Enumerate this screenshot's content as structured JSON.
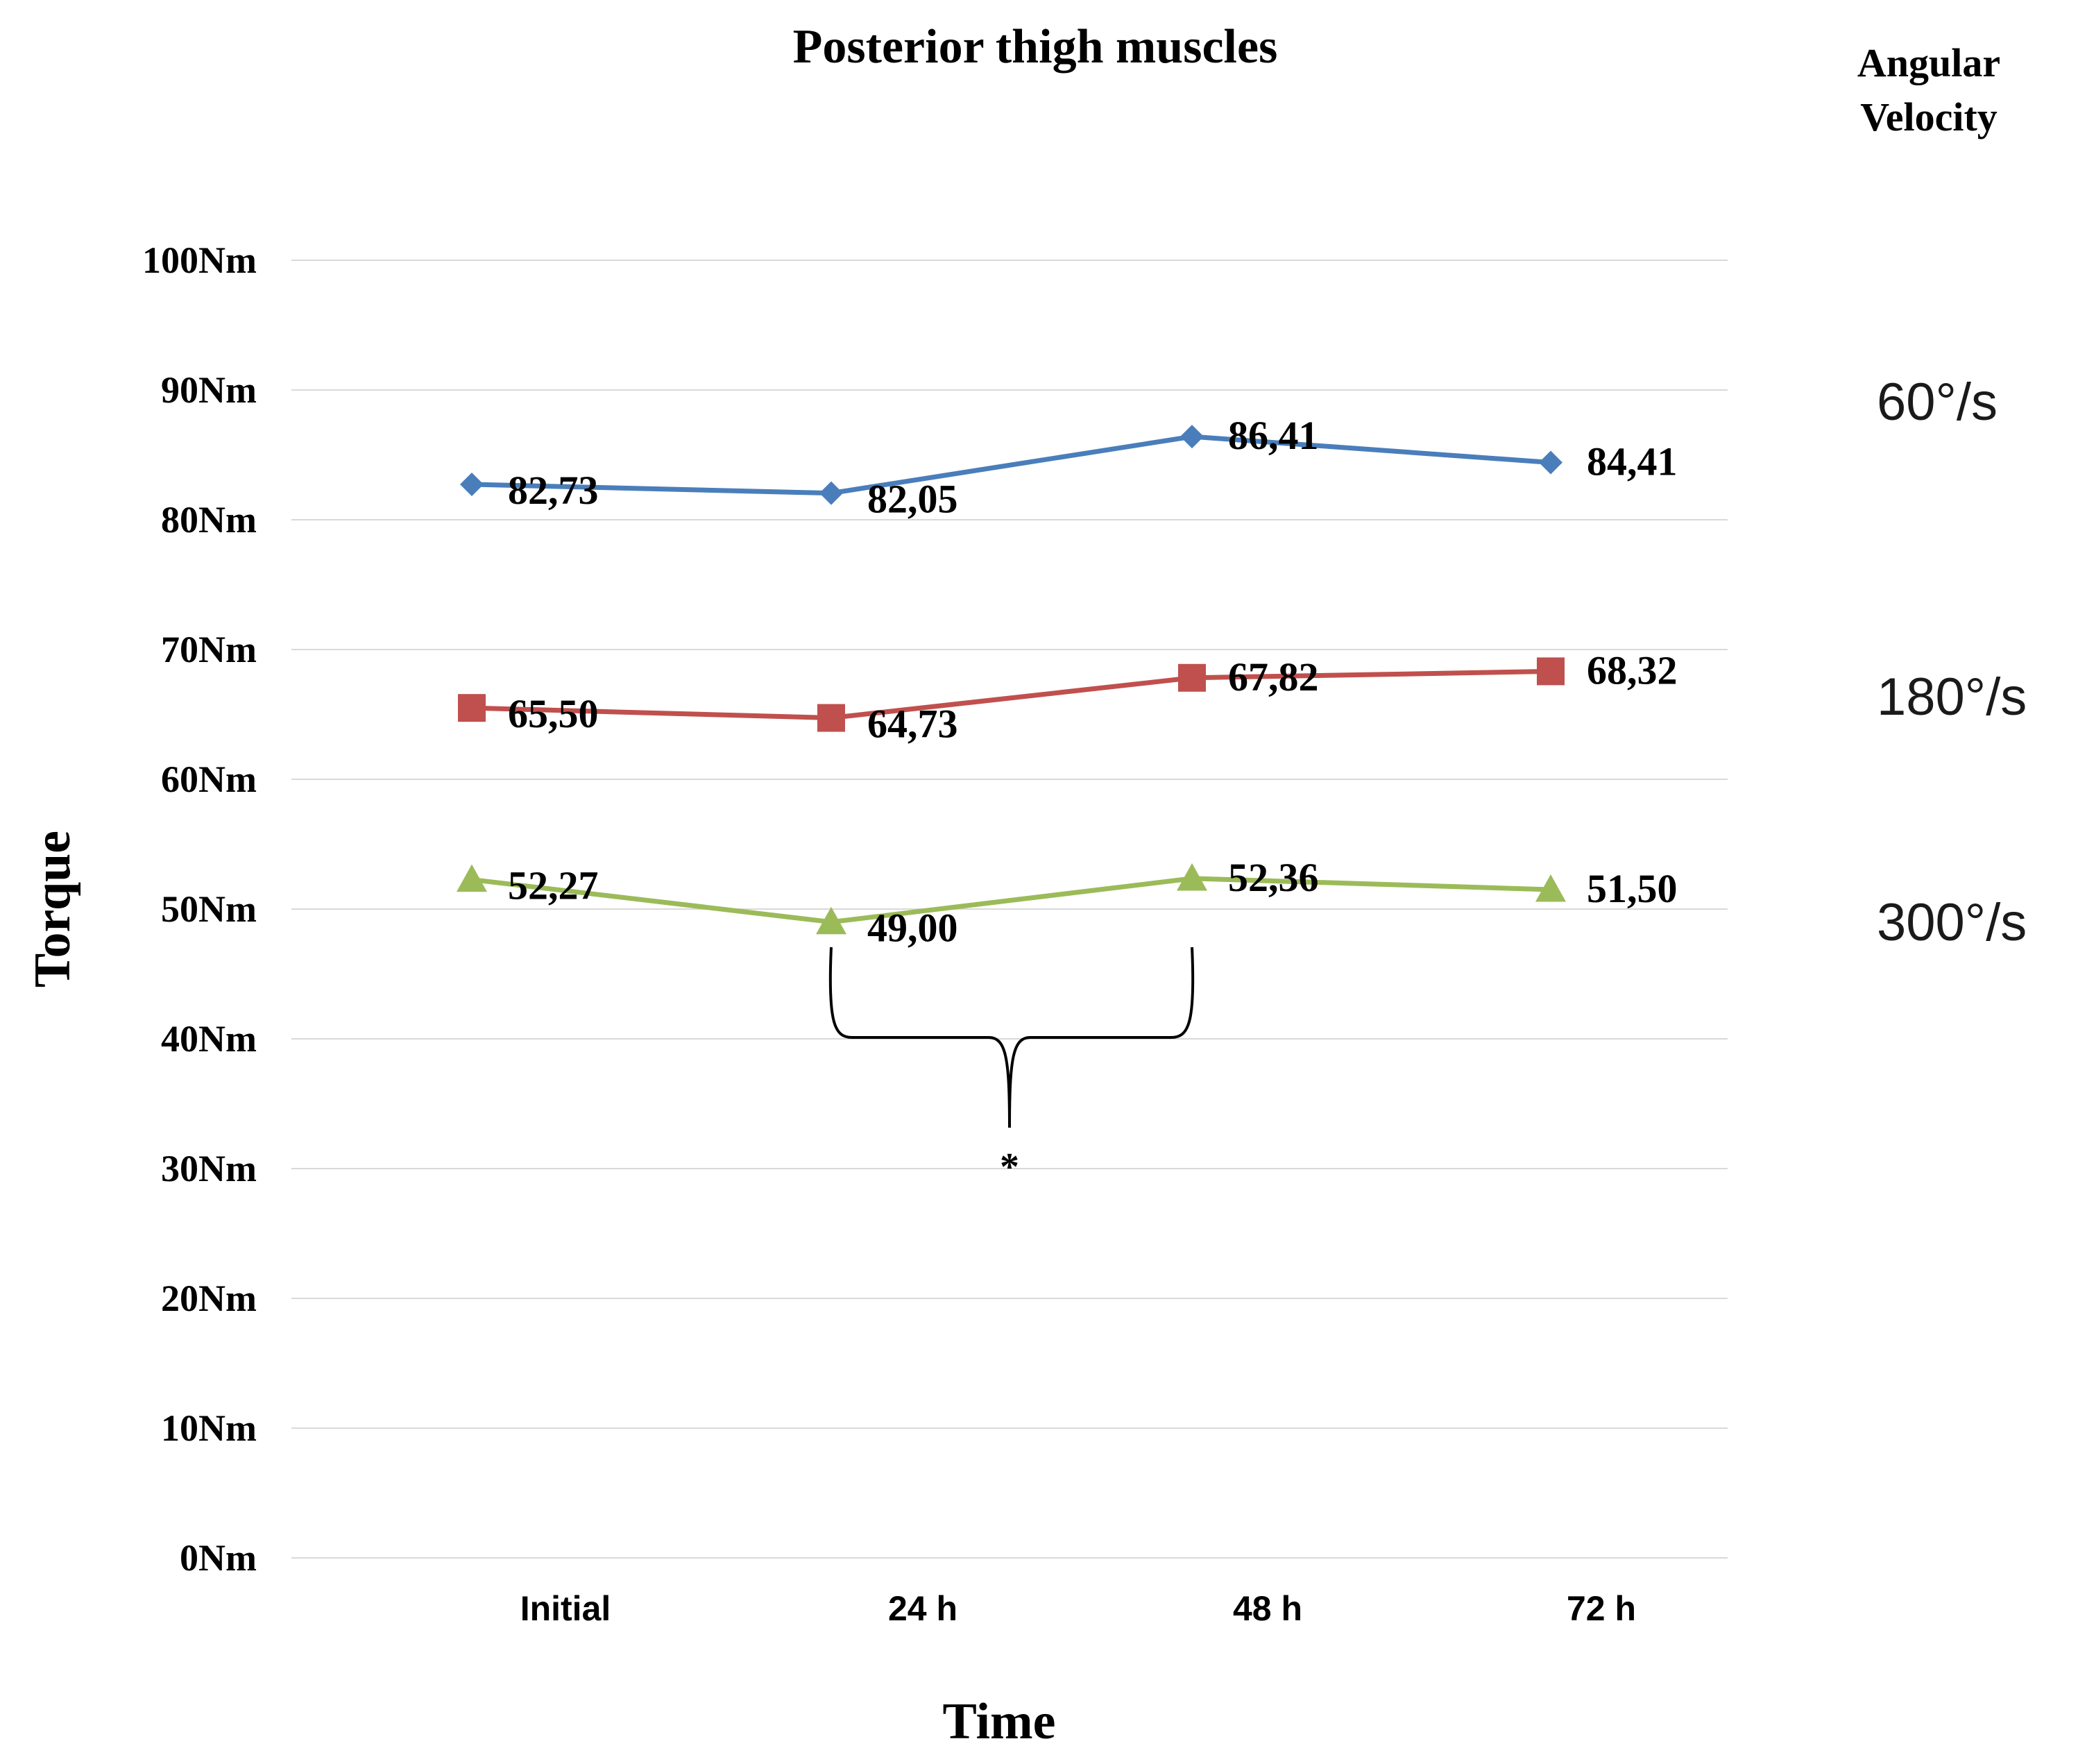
{
  "chart_data": {
    "type": "line",
    "title": "Posterior thigh muscles",
    "xlabel": "Time",
    "ylabel": "Torque",
    "categories": [
      "Initial",
      "24 h",
      "48 h",
      "72 h"
    ],
    "ylim": [
      0,
      100
    ],
    "yticks": [
      "0Nm",
      "10Nm",
      "20Nm",
      "30Nm",
      "40Nm",
      "50Nm",
      "60Nm",
      "70Nm",
      "80Nm",
      "90Nm",
      "100Nm"
    ],
    "grid": true,
    "legend_title": "Angular Velocity",
    "legend_placement": "right",
    "series": [
      {
        "name": "60°/s",
        "values": [
          82.73,
          82.05,
          86.41,
          84.41
        ],
        "labels": [
          "82,73",
          "82,05",
          "86,41",
          "84,41"
        ],
        "color": "#4a7ebb",
        "marker": "diamond"
      },
      {
        "name": "180°/s",
        "values": [
          65.5,
          64.73,
          67.82,
          68.32
        ],
        "labels": [
          "65,50",
          "64,73",
          "67,82",
          "68,32"
        ],
        "color": "#c0504d",
        "marker": "square"
      },
      {
        "name": "300°/s",
        "values": [
          52.27,
          49.0,
          52.36,
          51.5
        ],
        "labels": [
          "52,27",
          "49,00",
          "52,36",
          "51,50"
        ],
        "color": "#9bbb59",
        "marker": "triangle"
      }
    ],
    "annotations": [
      {
        "type": "brace",
        "from": "24 h",
        "to": "48 h",
        "text": "*"
      }
    ]
  }
}
